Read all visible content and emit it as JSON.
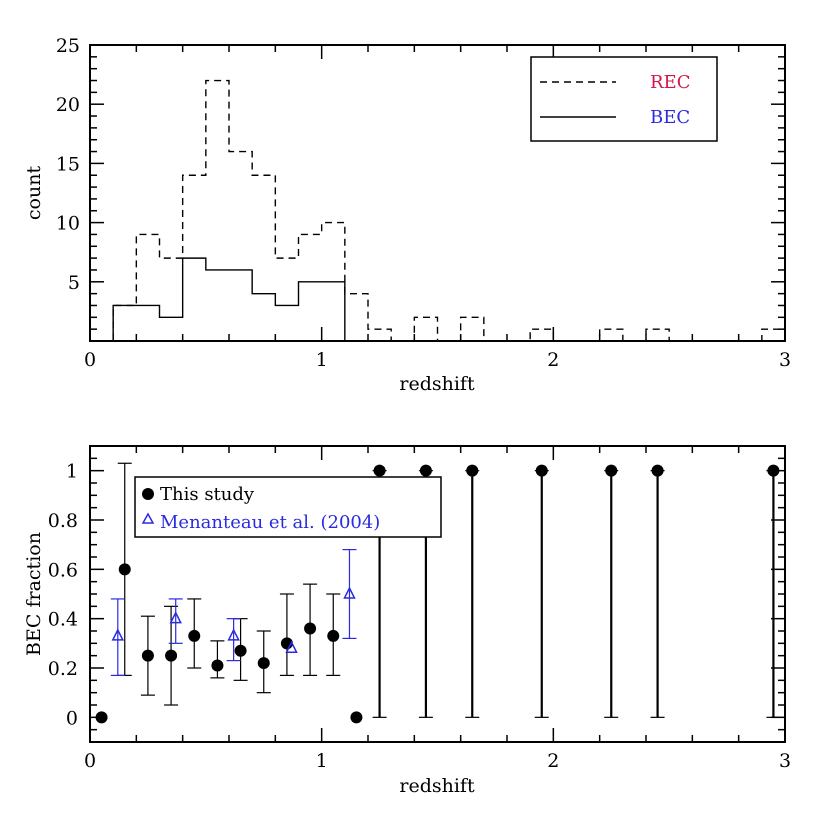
{
  "chart_data": [
    {
      "type": "histogram",
      "xlabel": "redshift",
      "ylabel": "count",
      "xlim": [
        0,
        3
      ],
      "ylim": [
        0,
        25
      ],
      "xticks": [
        "0",
        "1",
        "2",
        "3"
      ],
      "yticks": [
        "5",
        "10",
        "15",
        "20",
        "25"
      ],
      "bin_edges": [
        0,
        0.1,
        0.2,
        0.3,
        0.4,
        0.5,
        0.6,
        0.7,
        0.8,
        0.9,
        1.0,
        1.1,
        1.2,
        1.3,
        1.4,
        1.5,
        1.6,
        1.7,
        1.8,
        1.9,
        2.0,
        2.1,
        2.2,
        2.3,
        2.4,
        2.5,
        2.6,
        2.7,
        2.8,
        2.9,
        3.0
      ],
      "legend_position": "top-right",
      "series": [
        {
          "name": "REC",
          "style": "dashed",
          "label_color": "#d4164a",
          "values": [
            0,
            3,
            9,
            7,
            14,
            22,
            16,
            14,
            7,
            9,
            10,
            4,
            1,
            0,
            2,
            0,
            2,
            0,
            0,
            1,
            0,
            0,
            1,
            0,
            1,
            0,
            0,
            0,
            0,
            1
          ]
        },
        {
          "name": "BEC",
          "style": "solid",
          "label_color": "#2a2adf",
          "values": [
            0,
            3,
            3,
            2,
            7,
            6,
            6,
            4,
            3,
            5,
            5,
            0,
            0,
            0,
            0,
            0,
            0,
            0,
            0,
            0,
            0,
            0,
            0,
            0,
            0,
            0,
            0,
            0,
            0,
            0
          ]
        }
      ]
    },
    {
      "type": "scatter",
      "xlabel": "redshift",
      "ylabel": "BEC fraction",
      "xlim": [
        0,
        3
      ],
      "ylim": [
        -0.1,
        1.1
      ],
      "xticks": [
        "0",
        "1",
        "2",
        "3"
      ],
      "yticks": [
        "0",
        "0.2",
        "0.4",
        "0.6",
        "0.8",
        "1"
      ],
      "legend_position": "top-left",
      "series": [
        {
          "name": "This study",
          "marker": "filled-circle",
          "color": "#000000",
          "label_color": "#000000",
          "x": [
            0.05,
            0.15,
            0.25,
            0.35,
            0.45,
            0.55,
            0.65,
            0.75,
            0.85,
            0.95,
            1.05,
            1.15,
            1.25,
            1.45,
            1.65,
            1.95,
            2.25,
            2.45,
            2.95
          ],
          "y": [
            0,
            0.6,
            0.25,
            0.25,
            0.33,
            0.21,
            0.27,
            0.22,
            0.3,
            0.36,
            0.33,
            0,
            1,
            1,
            1,
            1,
            1,
            1,
            1
          ],
          "err_low": [
            null,
            0.17,
            0.09,
            0.05,
            0.2,
            0.16,
            0.15,
            0.1,
            0.17,
            0.17,
            0.17,
            null,
            0,
            0,
            0,
            0,
            0,
            0,
            0
          ],
          "err_high": [
            null,
            1.03,
            0.41,
            0.45,
            0.48,
            0.31,
            0.4,
            0.35,
            0.5,
            0.54,
            0.5,
            null,
            1,
            1,
            1,
            1,
            1,
            1,
            1
          ]
        },
        {
          "name": "Menanteau et al. (2004)",
          "marker": "open-triangle",
          "color": "#2a2adf",
          "label_color": "#2a2adf",
          "x": [
            0.12,
            0.37,
            0.62,
            0.87,
            1.12
          ],
          "y": [
            0.33,
            0.4,
            0.33,
            0.28,
            0.5
          ],
          "err_low": [
            0.17,
            0.3,
            0.23,
            null,
            0.32
          ],
          "err_high": [
            0.48,
            0.48,
            0.4,
            null,
            0.68
          ]
        }
      ]
    }
  ]
}
